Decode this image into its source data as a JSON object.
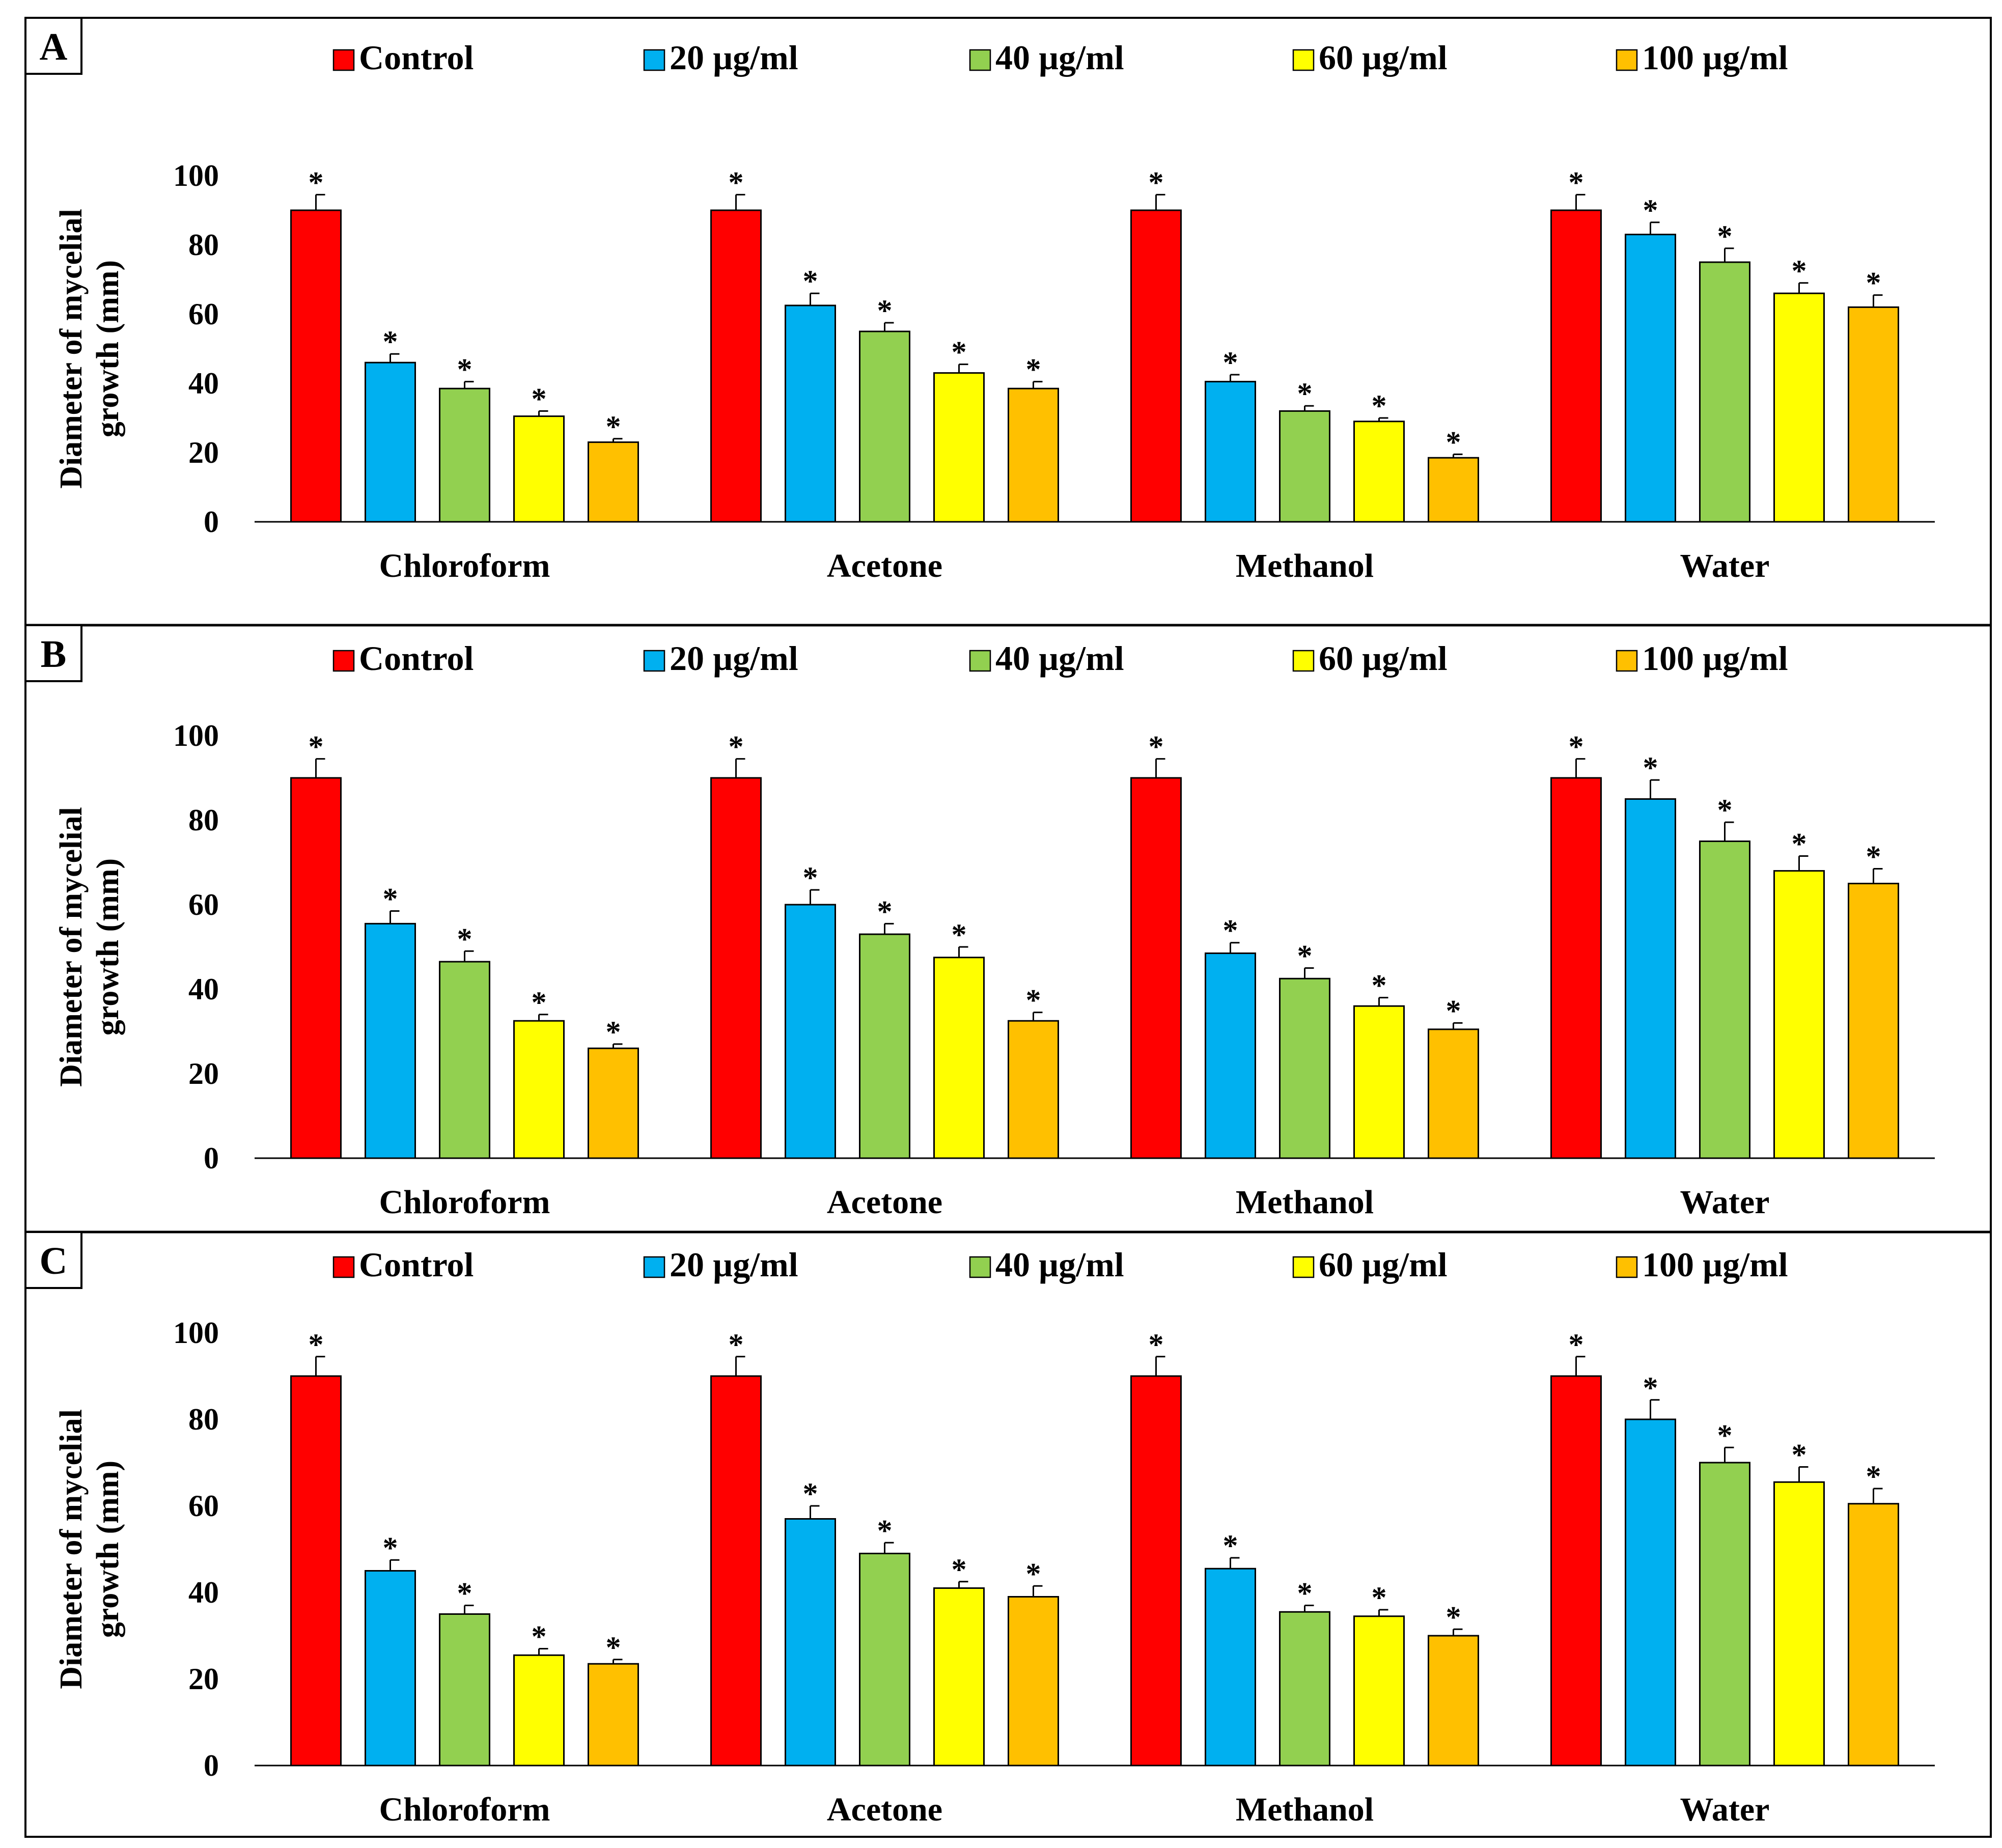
{
  "figure": {
    "colors": {
      "Control": "#ff0000",
      "20 µg/ml": "#00b0f0",
      "40 µg/ml": "#92d050",
      "60 µg/ml": "#ffff00",
      "100 µg/ml": "#ffc000"
    }
  },
  "chart_data": [
    {
      "type": "bar",
      "panel": "A",
      "ylabel_lines": [
        "Diameter of mycelial",
        "growth (mm)"
      ],
      "ylim": [
        0,
        100
      ],
      "yticks": [
        0,
        20,
        40,
        60,
        80,
        100
      ],
      "categories": [
        "Chloroform",
        "Acetone",
        "Methanol",
        "Water"
      ],
      "legend_position": "top",
      "marker": "*",
      "series": [
        {
          "name": "Control",
          "values": [
            90,
            90,
            90,
            90
          ],
          "errors": [
            4.5,
            4.5,
            4.5,
            4.5
          ]
        },
        {
          "name": "20 µg/ml",
          "values": [
            46,
            62.5,
            40.5,
            83
          ],
          "errors": [
            2.5,
            3.5,
            2,
            3.5
          ]
        },
        {
          "name": "40 µg/ml",
          "values": [
            38.5,
            55,
            32,
            75
          ],
          "errors": [
            2,
            2.5,
            1.5,
            4
          ]
        },
        {
          "name": "60 µg/ml",
          "values": [
            30.5,
            43,
            29,
            66
          ],
          "errors": [
            1.5,
            2.5,
            1,
            3
          ]
        },
        {
          "name": "100 µg/ml",
          "values": [
            23,
            38.5,
            18.5,
            62
          ],
          "errors": [
            1,
            2,
            1,
            3.5
          ]
        }
      ]
    },
    {
      "type": "bar",
      "panel": "B",
      "ylabel_lines": [
        "Diameter of mycelial",
        "growth (mm)"
      ],
      "ylim": [
        0,
        100
      ],
      "yticks": [
        0,
        20,
        40,
        60,
        80,
        100
      ],
      "categories": [
        "Chloroform",
        "Acetone",
        "Methanol",
        "Water"
      ],
      "legend_position": "top",
      "marker": "*",
      "series": [
        {
          "name": "Control",
          "values": [
            90,
            90,
            90,
            90
          ],
          "errors": [
            4.5,
            4.5,
            4.5,
            4.5
          ]
        },
        {
          "name": "20 µg/ml",
          "values": [
            55.5,
            60,
            48.5,
            85
          ],
          "errors": [
            3,
            3.5,
            2.5,
            4.5
          ]
        },
        {
          "name": "40 µg/ml",
          "values": [
            46.5,
            53,
            42.5,
            75
          ],
          "errors": [
            2.5,
            2.5,
            2.5,
            4.5
          ]
        },
        {
          "name": "60 µg/ml",
          "values": [
            32.5,
            47.5,
            36,
            68
          ],
          "errors": [
            1.5,
            2.5,
            2,
            3.5
          ]
        },
        {
          "name": "100 µg/ml",
          "values": [
            26,
            32.5,
            30.5,
            65
          ],
          "errors": [
            1,
            2,
            1.5,
            3.5
          ]
        }
      ]
    },
    {
      "type": "bar",
      "panel": "C",
      "ylabel_lines": [
        "Diameter of mycelial",
        "growth (mm)"
      ],
      "ylim": [
        0,
        100
      ],
      "yticks": [
        0,
        20,
        40,
        60,
        80,
        100
      ],
      "categories": [
        "Chloroform",
        "Acetone",
        "Methanol",
        "Water"
      ],
      "legend_position": "top",
      "marker": "*",
      "series": [
        {
          "name": "Control",
          "values": [
            90,
            90,
            90,
            90
          ],
          "errors": [
            4.5,
            4.5,
            4.5,
            4.5
          ]
        },
        {
          "name": "20 µg/ml",
          "values": [
            45,
            57,
            45.5,
            80
          ],
          "errors": [
            2.5,
            3,
            2.5,
            4.5
          ]
        },
        {
          "name": "40 µg/ml",
          "values": [
            35,
            49,
            35.5,
            70
          ],
          "errors": [
            2,
            2.5,
            1.5,
            3.5
          ]
        },
        {
          "name": "60 µg/ml",
          "values": [
            25.5,
            41,
            34.5,
            65.5
          ],
          "errors": [
            1.5,
            1.5,
            1.5,
            3.5
          ]
        },
        {
          "name": "100 µg/ml",
          "values": [
            23.5,
            39,
            30,
            60.5
          ],
          "errors": [
            1,
            2.5,
            1.5,
            3.5
          ]
        }
      ]
    }
  ]
}
